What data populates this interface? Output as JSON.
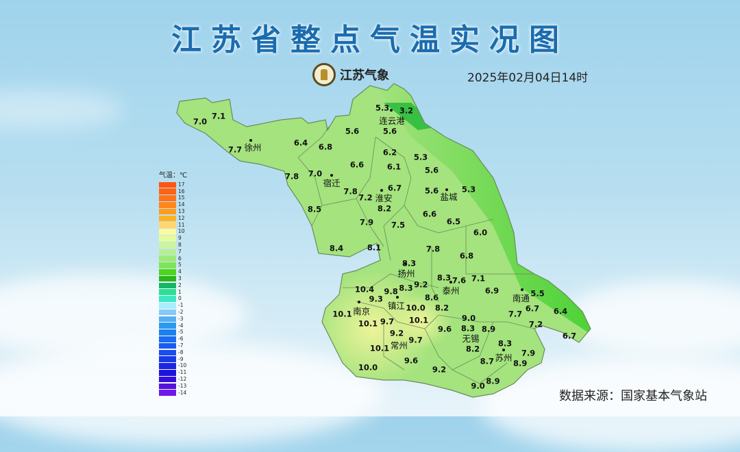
{
  "title": "江苏省整点气温实况图",
  "logo": {
    "text": "江苏气象",
    "icon": "meteorological-seal-logo"
  },
  "datetime": "2025年02月04日14时",
  "source": "数据来源：国家基本气象站",
  "legend": {
    "title": "气温：℃",
    "labels": [
      "17",
      "16",
      "15",
      "14",
      "13",
      "12",
      "11",
      "10",
      "9",
      "8",
      "7",
      "6",
      "5",
      "4",
      "3",
      "2",
      "1",
      "0",
      "-1",
      "-2",
      "-3",
      "-4",
      "-5",
      "-6",
      "-7",
      "-8",
      "-9",
      "-10",
      "-11",
      "-12",
      "-13",
      "-14"
    ],
    "colors": [
      "#ff5511",
      "#ff6414",
      "#ff7418",
      "#ff861a",
      "#ff9c1a",
      "#ffb21e",
      "#ffd672",
      "#fbfb9c",
      "#e4fb9e",
      "#cdf59c",
      "#b6f08e",
      "#9cea78",
      "#80e45a",
      "#4ed61c",
      "#2cb51c",
      "#18b468",
      "#2ce094",
      "#3ce8c4",
      "#a8eefe",
      "#86c8f6",
      "#58aef2",
      "#2a9af0",
      "#1c80f0",
      "#1a6cf0",
      "#1a5cf0",
      "#1a4cee",
      "#1a3ae8",
      "#1a26e0",
      "#1c14dc",
      "#3410d8",
      "#5214dc",
      "#7018ea"
    ]
  },
  "stations": [
    "7.1",
    "7.0",
    "7.7",
    "6.4",
    "6.8",
    "5.6",
    "5.3",
    "3.2",
    "5.6",
    "6.2",
    "6.1",
    "5.3",
    "5.6",
    "6.6",
    "7.8",
    "7.0",
    "7.8",
    "6.7",
    "7.2",
    "8.2",
    "5.6",
    "5.3",
    "8.5",
    "7.9",
    "7.5",
    "6.6",
    "6.5",
    "6.0",
    "8.4",
    "8.1",
    "7.8",
    "6.8",
    "8.3",
    "8.3",
    "7.6",
    "7.1",
    "9.2",
    "8.3",
    "9.8",
    "9.3",
    "10.4",
    "6.9",
    "5.5",
    "8.6",
    "10.0",
    "8.2",
    "10.1",
    "7.7",
    "6.7",
    "6.4",
    "10.1",
    "9.7",
    "10.1",
    "9.0",
    "8.3",
    "9.6",
    "8.9",
    "9.2",
    "9.7",
    "7.2",
    "6.7",
    "10.1",
    "8.3",
    "8.2",
    "7.9",
    "8.7",
    "8.9",
    "9.6",
    "9.2",
    "10.0",
    "8.9",
    "9.0"
  ],
  "cities": [
    "徐州",
    "连云港",
    "宿迁",
    "淮安",
    "盐城",
    "扬州",
    "泰州",
    "南通",
    "南京",
    "镇江",
    "常州",
    "无锡",
    "苏州"
  ],
  "map_colors": {
    "land": "#a4e37e",
    "coast": "#3fcf2a",
    "warm": "#eef49a",
    "border": "#6a8a5a"
  }
}
